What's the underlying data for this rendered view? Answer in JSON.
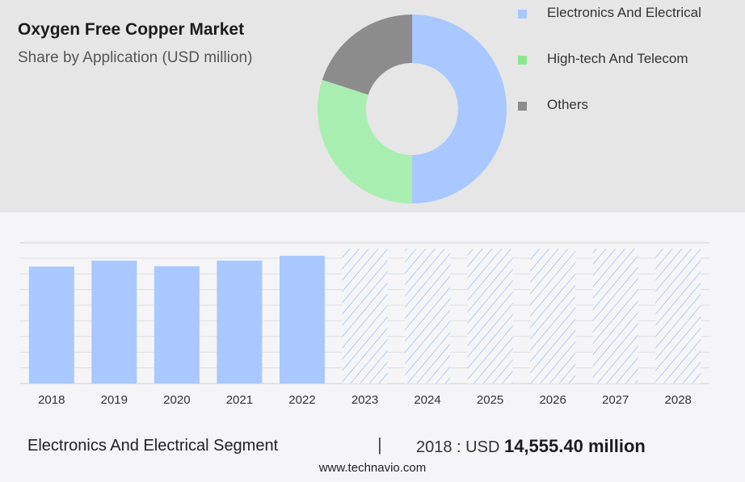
{
  "header": {
    "title": "Oxygen Free Copper Market",
    "subtitle": "Share by Application (USD million)"
  },
  "legend": [
    {
      "label": "Electronics And Electrical",
      "color": "#a8c8ff"
    },
    {
      "label": "High-tech And Telecom",
      "color": "#88e890"
    },
    {
      "label": "Others",
      "color": "#8c8c8c"
    }
  ],
  "footer": {
    "segment": "Electronics And Electrical Segment",
    "separator": "|",
    "value_prefix": "2018 : USD",
    "value": "14,555.40 million",
    "source": "www.technavio.com"
  },
  "chart_data": [
    {
      "type": "pie",
      "style": "donut",
      "labels": [
        "Electronics And Electrical",
        "High-tech And Telecom",
        "Others"
      ],
      "values": [
        50,
        30,
        20
      ],
      "colors": [
        "#a8c8ff",
        "#a8eeb0",
        "#8c8c8c"
      ]
    },
    {
      "type": "bar",
      "categories": [
        "2018",
        "2019",
        "2020",
        "2021",
        "2022",
        "2023",
        "2024",
        "2025",
        "2026",
        "2027",
        "2028"
      ],
      "values": [
        14555.4,
        15300,
        14600,
        15300,
        15900,
        null,
        null,
        null,
        null,
        null,
        null
      ],
      "forecast": [
        "2023",
        "2024",
        "2025",
        "2026",
        "2027",
        "2028"
      ],
      "ylim": [
        0,
        19500
      ],
      "grid": true,
      "bar_color": "#a8c8ff",
      "forecast_pattern": "hatched"
    }
  ]
}
